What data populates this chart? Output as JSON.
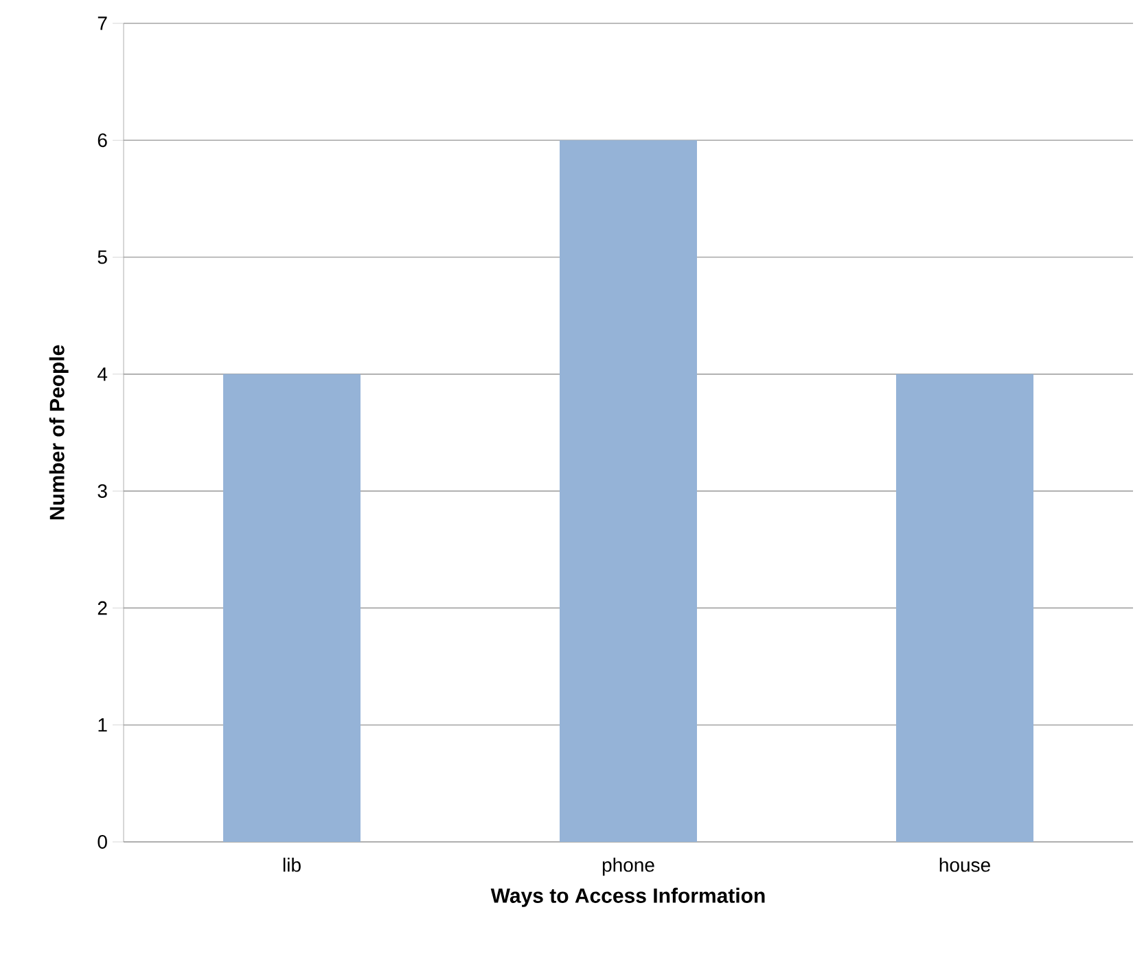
{
  "chart_data": {
    "type": "bar",
    "xlabel": "Ways to Access Information",
    "ylabel": "Number of People",
    "categories": [
      "lib",
      "phone",
      "house"
    ],
    "values": [
      4,
      6,
      4
    ],
    "color": "#95b3d7",
    "ylim": [
      0,
      7
    ],
    "yticks": [
      0,
      1,
      2,
      3,
      4,
      5,
      6,
      7
    ],
    "grid": "y"
  }
}
